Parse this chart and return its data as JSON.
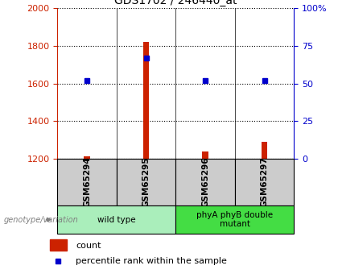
{
  "title": "GDS1702 / 246440_at",
  "samples": [
    "GSM65294",
    "GSM65295",
    "GSM65296",
    "GSM65297"
  ],
  "groups": [
    {
      "label": "wild type",
      "indices": [
        0,
        1
      ],
      "color": "#aaeebb"
    },
    {
      "label": "phyA phyB double\nmutant",
      "indices": [
        2,
        3
      ],
      "color": "#44dd44"
    }
  ],
  "counts": [
    1210,
    1820,
    1237,
    1290
  ],
  "percentile_ranks": [
    52,
    67,
    52,
    52
  ],
  "left_ylim": [
    1200,
    2000
  ],
  "right_ylim": [
    0,
    100
  ],
  "left_yticks": [
    1200,
    1400,
    1600,
    1800,
    2000
  ],
  "right_yticks": [
    0,
    25,
    50,
    75,
    100
  ],
  "right_yticklabels": [
    "0",
    "25",
    "50",
    "75",
    "100%"
  ],
  "left_color": "#cc2200",
  "right_color": "#0000cc",
  "bar_color": "#cc2200",
  "marker_color": "#0000cc",
  "legend_count_color": "#cc2200",
  "legend_marker_color": "#0000cc",
  "xlabel_group": "genotype/variation",
  "legend_items": [
    "count",
    "percentile rank within the sample"
  ],
  "sample_box_color": "#cccccc",
  "bar_width": 0.1
}
